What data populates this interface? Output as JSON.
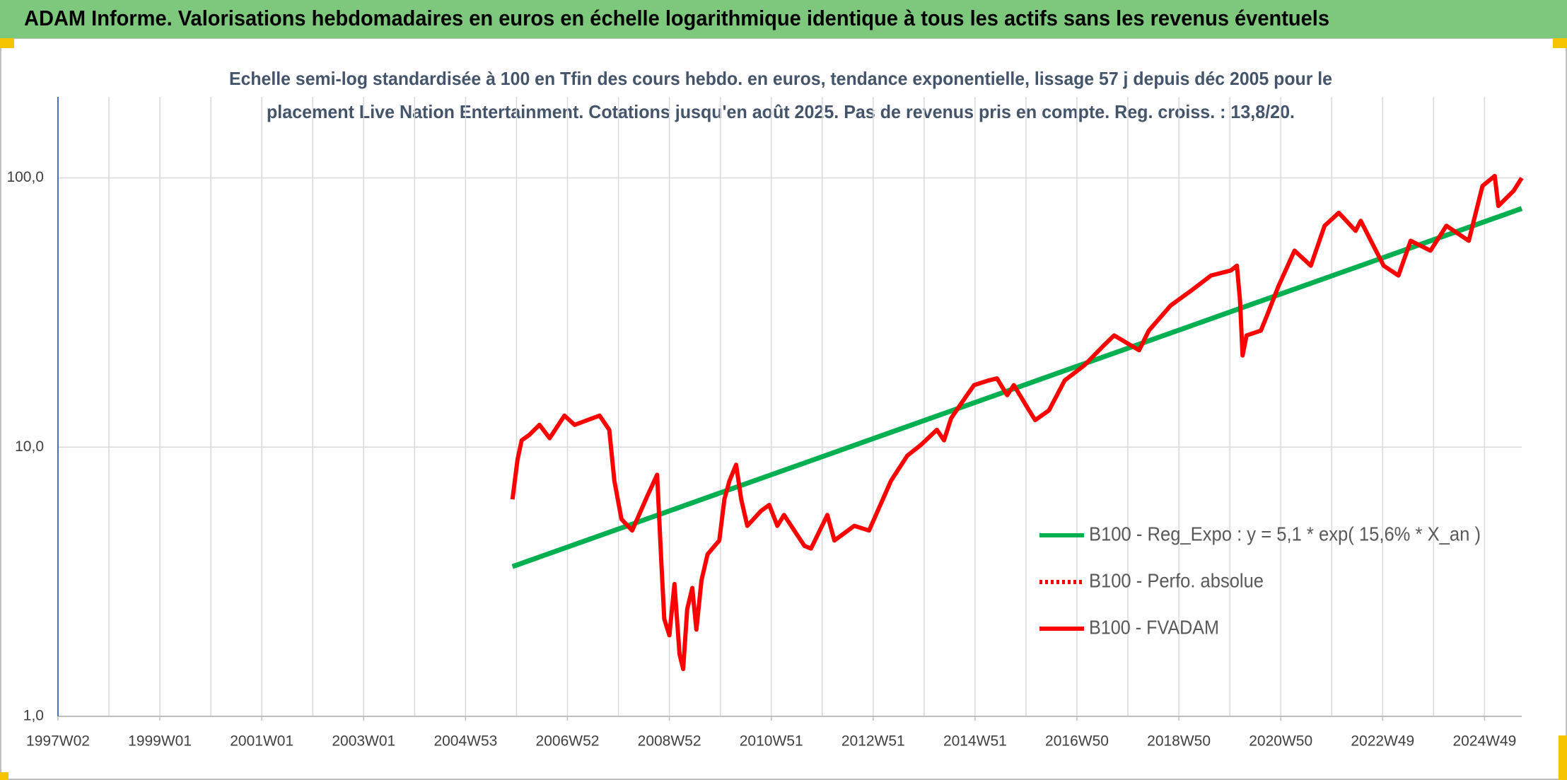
{
  "header": {
    "title": "ADAM Informe. Valorisations hebdomadaires en euros en échelle logarithmique identique à tous les actifs sans les revenus éventuels"
  },
  "chart_data": {
    "type": "line",
    "title": [
      "Echelle semi-log standardisée à 100 en Tfin des cours hebdo. en euros, tendance exponentielle, lissage 57 j depuis déc 2005 pour le",
      "placement Live Nation Entertainment. Cotations jusqu'en août 2025. Pas de revenus pris en compte. Reg. croiss. : 13,8/20."
    ],
    "log_y": true,
    "grid": true,
    "legend": "right",
    "xlim": [
      1997.0,
      2025.73
    ],
    "xticks": [
      {
        "value": 1997.0,
        "label": "1997W02"
      },
      {
        "value": 1999.0,
        "label": "1999W01"
      },
      {
        "value": 2001.0,
        "label": "2001W01"
      },
      {
        "value": 2003.0,
        "label": "2003W01"
      },
      {
        "value": 2005.0,
        "label": "2004W53"
      },
      {
        "value": 2007.0,
        "label": "2006W52"
      },
      {
        "value": 2009.0,
        "label": "2008W52"
      },
      {
        "value": 2011.0,
        "label": "2010W51"
      },
      {
        "value": 2013.0,
        "label": "2012W51"
      },
      {
        "value": 2015.0,
        "label": "2014W51"
      },
      {
        "value": 2017.0,
        "label": "2016W50"
      },
      {
        "value": 2019.0,
        "label": "2018W50"
      },
      {
        "value": 2021.0,
        "label": "2020W50"
      },
      {
        "value": 2023.0,
        "label": "2022W49"
      },
      {
        "value": 2025.0,
        "label": "2024W49"
      }
    ],
    "xgrid": [
      1997,
      1998,
      1999,
      2000,
      2001,
      2002,
      2003,
      2004,
      2005,
      2006,
      2007,
      2008,
      2009,
      2010,
      2011,
      2012,
      2013,
      2014,
      2015,
      2016,
      2017,
      2018,
      2019,
      2020,
      2021,
      2022,
      2023,
      2024,
      2025
    ],
    "ylim": [
      1,
      200
    ],
    "yticks": [
      {
        "value": 1,
        "label": "1,0"
      },
      {
        "value": 10,
        "label": "10,0"
      },
      {
        "value": 100,
        "label": "100,0"
      }
    ],
    "series": [
      {
        "name": "B100 - Reg_Expo : y = 5,1 * exp( 15,6% *  X_an )",
        "color": "#00b050",
        "dash": "solid",
        "x": [
          2005.92,
          2025.73
        ],
        "values": [
          3.6,
          77
        ]
      },
      {
        "name": "B100 - Perfo. absolue",
        "color": "#ff0000",
        "dash": "dotted",
        "x": [],
        "values": []
      },
      {
        "name": "B100 - FVADAM",
        "color": "#ff0000",
        "dash": "solid",
        "x": [
          2005.92,
          2006.02,
          2006.1,
          2006.25,
          2006.45,
          2006.65,
          2006.94,
          2007.14,
          2007.63,
          2007.82,
          2007.92,
          2008.06,
          2008.27,
          2008.57,
          2008.76,
          2008.84,
          2008.9,
          2009.0,
          2009.1,
          2009.2,
          2009.27,
          2009.35,
          2009.45,
          2009.53,
          2009.63,
          2009.75,
          2009.98,
          2010.08,
          2010.18,
          2010.31,
          2010.41,
          2010.53,
          2010.8,
          2010.96,
          2011.12,
          2011.25,
          2011.65,
          2011.78,
          2012.1,
          2012.24,
          2012.63,
          2012.92,
          2013.22,
          2013.35,
          2013.67,
          2013.94,
          2014.25,
          2014.39,
          2014.53,
          2014.84,
          2014.98,
          2015.27,
          2015.43,
          2015.63,
          2015.76,
          2016.06,
          2016.18,
          2016.45,
          2016.76,
          2017.14,
          2017.53,
          2017.73,
          2018.22,
          2018.41,
          2018.84,
          2019.24,
          2019.63,
          2020.02,
          2020.14,
          2020.2,
          2020.25,
          2020.33,
          2020.61,
          2020.73,
          2020.96,
          2021.27,
          2021.59,
          2021.86,
          2022.14,
          2022.47,
          2022.57,
          2023.02,
          2023.31,
          2023.55,
          2023.94,
          2024.25,
          2024.69,
          2024.96,
          2025.2,
          2025.27,
          2025.57,
          2025.73
        ],
        "values": [
          6.4,
          9.0,
          10.6,
          11.1,
          12.1,
          10.8,
          13.1,
          12.1,
          13.1,
          11.6,
          7.5,
          5.4,
          4.9,
          6.6,
          7.9,
          3.8,
          2.3,
          2.0,
          3.1,
          1.7,
          1.5,
          2.5,
          3.0,
          2.1,
          3.2,
          4.0,
          4.5,
          6.4,
          7.5,
          8.6,
          6.4,
          5.1,
          5.8,
          6.1,
          5.1,
          5.6,
          4.3,
          4.2,
          5.6,
          4.5,
          5.1,
          4.9,
          6.6,
          7.5,
          9.3,
          10.2,
          11.6,
          10.6,
          12.8,
          15.6,
          17.0,
          17.7,
          18.0,
          15.6,
          17.0,
          13.7,
          12.6,
          13.7,
          17.7,
          20.1,
          23.9,
          26.0,
          22.9,
          27.1,
          33.6,
          38.1,
          43.4,
          45.3,
          47.2,
          35.0,
          21.9,
          26.0,
          27.1,
          30.8,
          39.8,
          53.7,
          47.2,
          66.4,
          74.2,
          63.6,
          69.3,
          47.2,
          43.4,
          58.4,
          53.7,
          66.4,
          58.4,
          93.4,
          101.7,
          78.7,
          89.5,
          100
        ]
      }
    ]
  }
}
